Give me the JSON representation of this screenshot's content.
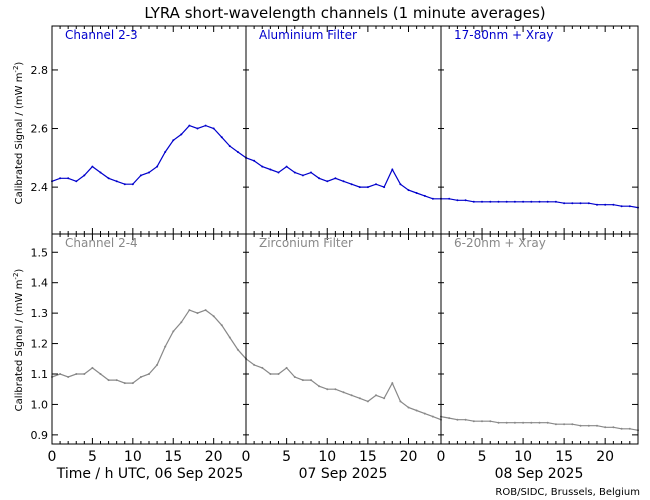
{
  "chart_data": {
    "type": "line",
    "title": "LYRA short-wavelength channels (1 minute averages)",
    "ylabel": "Calibrated Signal / (mW m",
    "ylabel_sup": "-2",
    "ylabel_close": ")",
    "xlabel_day1": "Time / h UTC, 06 Sep 2025",
    "xlabel_day2": "07 Sep 2025",
    "xlabel_day3": "08 Sep 2025",
    "credit": "ROB/SIDC, Brussels, Belgium",
    "x_ticks": [
      "0",
      "5",
      "10",
      "15",
      "20"
    ],
    "x_tick_values": [
      0,
      5,
      10,
      15,
      20
    ],
    "xlim": [
      0,
      24
    ],
    "colors": {
      "top": "#0000cc",
      "bottom": "#888888",
      "axes": "#000000"
    },
    "rows": [
      {
        "ylim": [
          2.24,
          2.95
        ],
        "y_ticks": [
          "2.4",
          "2.6",
          "2.8"
        ],
        "y_tick_values": [
          2.4,
          2.6,
          2.8
        ],
        "panels": [
          {
            "label": "Channel 2-3",
            "hours": [
              0,
              1,
              2,
              3,
              4,
              5,
              6,
              7,
              8,
              9,
              10,
              11,
              12,
              13,
              14,
              15,
              16,
              17,
              18,
              19,
              20,
              21,
              22,
              23,
              24
            ],
            "values": [
              2.42,
              2.43,
              2.43,
              2.42,
              2.44,
              2.47,
              2.45,
              2.43,
              2.42,
              2.41,
              2.41,
              2.44,
              2.45,
              2.47,
              2.52,
              2.56,
              2.58,
              2.61,
              2.6,
              2.61,
              2.6,
              2.57,
              2.54,
              2.52,
              2.5
            ]
          },
          {
            "label": "Aluminium Filter",
            "hours": [
              0,
              1,
              2,
              3,
              4,
              5,
              6,
              7,
              8,
              9,
              10,
              11,
              12,
              13,
              14,
              15,
              16,
              17,
              18,
              19,
              20,
              21,
              22,
              23,
              24
            ],
            "values": [
              2.5,
              2.49,
              2.47,
              2.46,
              2.45,
              2.47,
              2.45,
              2.44,
              2.45,
              2.43,
              2.42,
              2.43,
              2.42,
              2.41,
              2.4,
              2.4,
              2.41,
              2.4,
              2.46,
              2.41,
              2.39,
              2.38,
              2.37,
              2.36,
              2.36
            ]
          },
          {
            "label": "17-80nm + Xray",
            "hours": [
              0,
              1,
              2,
              3,
              4,
              5,
              6,
              7,
              8,
              9,
              10,
              11,
              12,
              13,
              14,
              15,
              16,
              17,
              18,
              19,
              20,
              21,
              22,
              23,
              24
            ],
            "values": [
              2.36,
              2.36,
              2.355,
              2.355,
              2.35,
              2.35,
              2.35,
              2.35,
              2.35,
              2.35,
              2.35,
              2.35,
              2.35,
              2.35,
              2.35,
              2.345,
              2.345,
              2.345,
              2.345,
              2.34,
              2.34,
              2.34,
              2.335,
              2.335,
              2.33
            ]
          }
        ]
      },
      {
        "ylim": [
          0.87,
          1.56
        ],
        "y_ticks": [
          "0.9",
          "1.0",
          "1.1",
          "1.2",
          "1.3",
          "1.4",
          "1.5"
        ],
        "y_tick_values": [
          0.9,
          1.0,
          1.1,
          1.2,
          1.3,
          1.4,
          1.5
        ],
        "panels": [
          {
            "label": "Channel 2-4",
            "hours": [
              0,
              1,
              2,
              3,
              4,
              5,
              6,
              7,
              8,
              9,
              10,
              11,
              12,
              13,
              14,
              15,
              16,
              17,
              18,
              19,
              20,
              21,
              22,
              23,
              24
            ],
            "values": [
              1.09,
              1.1,
              1.09,
              1.1,
              1.1,
              1.12,
              1.1,
              1.08,
              1.08,
              1.07,
              1.07,
              1.09,
              1.1,
              1.13,
              1.19,
              1.24,
              1.27,
              1.31,
              1.3,
              1.31,
              1.29,
              1.26,
              1.22,
              1.18,
              1.15
            ]
          },
          {
            "label": "Zirconium Filter",
            "hours": [
              0,
              1,
              2,
              3,
              4,
              5,
              6,
              7,
              8,
              9,
              10,
              11,
              12,
              13,
              14,
              15,
              16,
              17,
              18,
              19,
              20,
              21,
              22,
              23,
              24
            ],
            "values": [
              1.15,
              1.13,
              1.12,
              1.1,
              1.1,
              1.12,
              1.09,
              1.08,
              1.08,
              1.06,
              1.05,
              1.05,
              1.04,
              1.03,
              1.02,
              1.01,
              1.03,
              1.02,
              1.07,
              1.01,
              0.99,
              0.98,
              0.97,
              0.96,
              0.95
            ]
          },
          {
            "label": "6-20nm + Xray",
            "hours": [
              0,
              1,
              2,
              3,
              4,
              5,
              6,
              7,
              8,
              9,
              10,
              11,
              12,
              13,
              14,
              15,
              16,
              17,
              18,
              19,
              20,
              21,
              22,
              23,
              24
            ],
            "values": [
              0.96,
              0.955,
              0.95,
              0.95,
              0.945,
              0.945,
              0.945,
              0.94,
              0.94,
              0.94,
              0.94,
              0.94,
              0.94,
              0.94,
              0.935,
              0.935,
              0.935,
              0.93,
              0.93,
              0.93,
              0.925,
              0.925,
              0.92,
              0.92,
              0.915
            ]
          }
        ]
      }
    ]
  }
}
